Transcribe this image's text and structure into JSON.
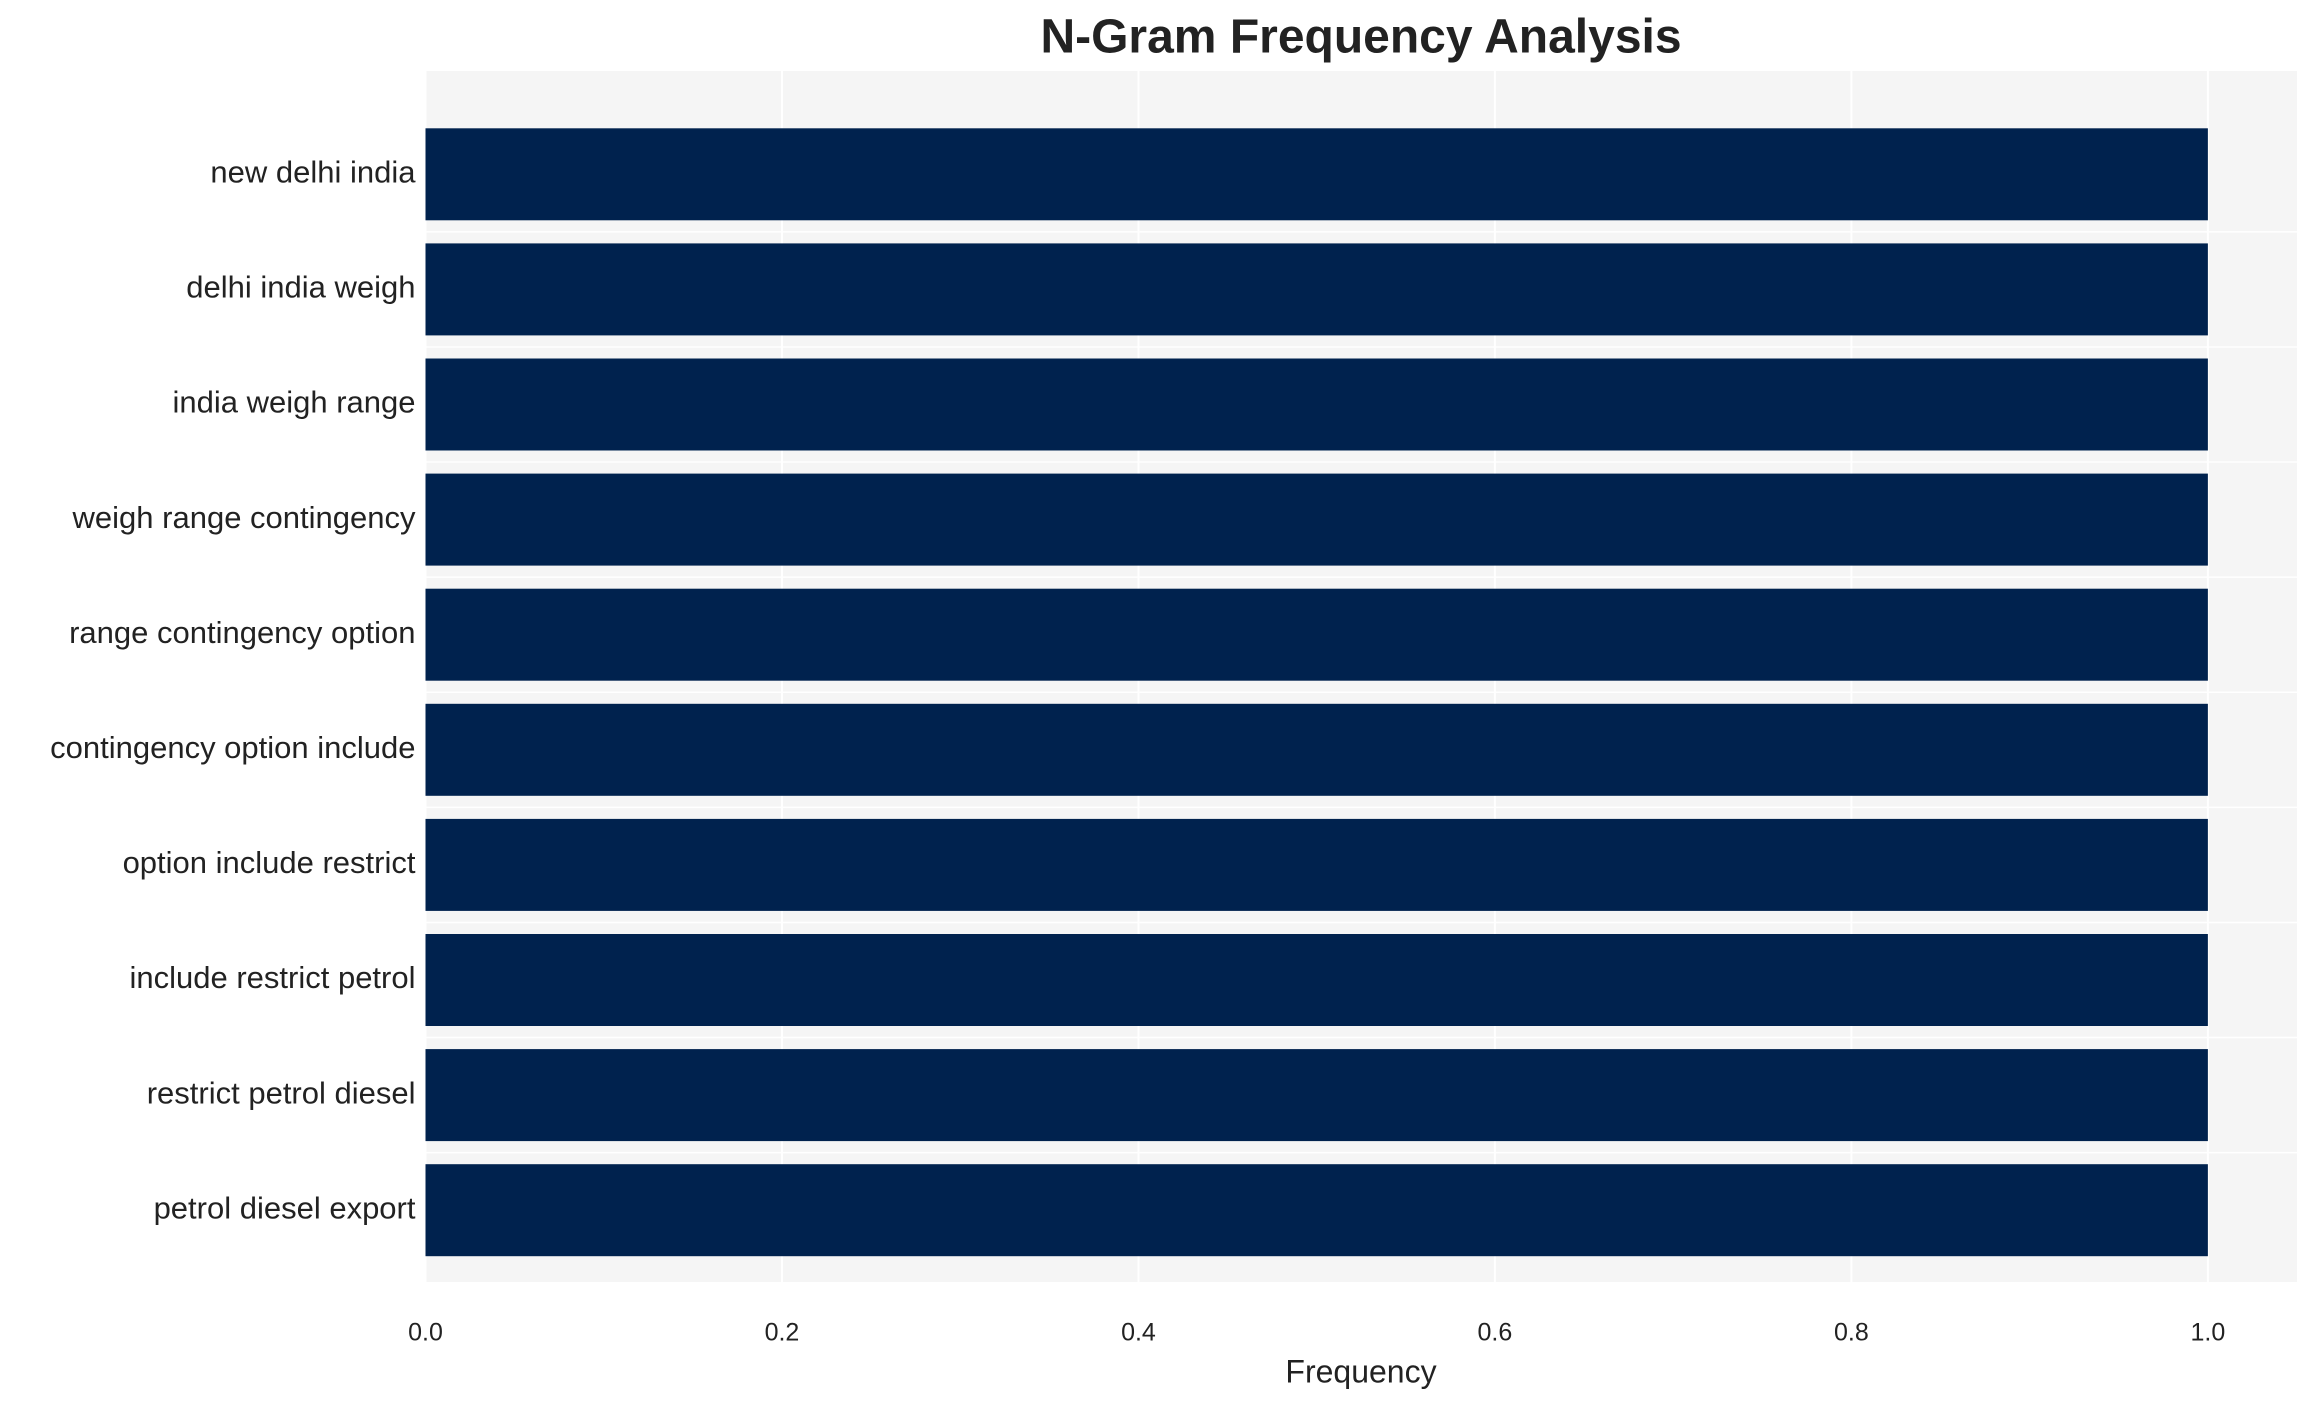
{
  "chart_data": {
    "type": "bar",
    "orientation": "horizontal",
    "title": "N-Gram Frequency Analysis",
    "xlabel": "Frequency",
    "categories": [
      "new delhi india",
      "delhi india weigh",
      "india weigh range",
      "weigh range contingency",
      "range contingency option",
      "contingency option include",
      "option include restrict",
      "include restrict petrol",
      "restrict petrol diesel",
      "petrol diesel export"
    ],
    "values": [
      1,
      1,
      1,
      1,
      1,
      1,
      1,
      1,
      1,
      1
    ],
    "color": "#00224e",
    "xlim": [
      0,
      1.05
    ],
    "xticks": [
      {
        "value": 0,
        "label": "0.0"
      },
      0.2,
      0.4,
      0.6,
      0.8,
      {
        "value": 1,
        "label": "1.0"
      }
    ],
    "grid": true
  }
}
